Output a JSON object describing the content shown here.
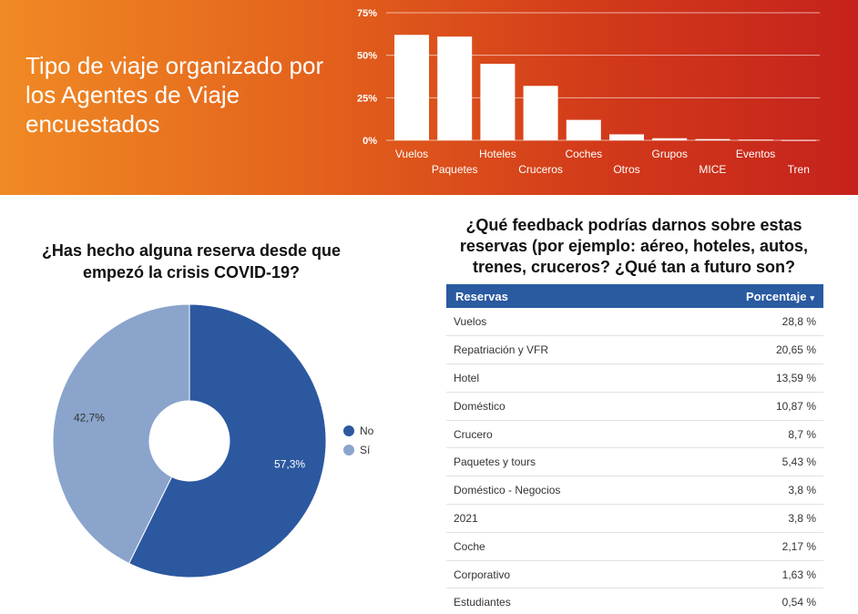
{
  "banner": {
    "title": "Tipo de viaje organizado por los Agentes de Viaje encuestados"
  },
  "pie": {
    "title": "¿Has hecho alguna reserva desde que empezó la crisis COVID-19?"
  },
  "table": {
    "title": "¿Qué feedback podrías darnos sobre estas reservas (por ejemplo: aéreo, hoteles, autos, trenes, cruceros? ¿Qué tan a futuro son?",
    "col_reservas": "Reservas",
    "col_porcentaje": "Porcentaje",
    "sort_icon": "▾"
  },
  "chart_data": [
    {
      "type": "bar",
      "categories": [
        "Vuelos",
        "Paquetes",
        "Hoteles",
        "Cruceros",
        "Coches",
        "Otros",
        "Grupos",
        "MICE",
        "Eventos",
        "Tren"
      ],
      "values": [
        62,
        61,
        45,
        32,
        12,
        3.5,
        1.2,
        0.7,
        0.4,
        0.2
      ],
      "yticks": [
        "0%",
        "25%",
        "50%",
        "75%"
      ],
      "ylim": [
        0,
        75
      ],
      "grid": true,
      "bar_color": "#ffffff"
    },
    {
      "type": "pie",
      "donut": true,
      "labels": [
        "No",
        "Sí"
      ],
      "values": [
        57.3,
        42.7
      ],
      "value_labels": [
        "57,3%",
        "42,7%"
      ],
      "colors": [
        "#2c58a0",
        "#8aa4cc"
      ],
      "legend": "right"
    },
    {
      "type": "table",
      "rows": [
        {
          "reserva": "Vuelos",
          "porcentaje": "28,8 %"
        },
        {
          "reserva": "Repatriación y VFR",
          "porcentaje": "20,65 %"
        },
        {
          "reserva": "Hotel",
          "porcentaje": "13,59 %"
        },
        {
          "reserva": "Doméstico",
          "porcentaje": "10,87 %"
        },
        {
          "reserva": "Crucero",
          "porcentaje": "8,7 %"
        },
        {
          "reserva": "Paquetes y tours",
          "porcentaje": "5,43 %"
        },
        {
          "reserva": "Doméstico - Negocios",
          "porcentaje": "3,8 %"
        },
        {
          "reserva": "2021",
          "porcentaje": "3,8 %"
        },
        {
          "reserva": "Coche",
          "porcentaje": "2,17 %"
        },
        {
          "reserva": "Corporativo",
          "porcentaje": "1,63 %"
        },
        {
          "reserva": "Estudiantes",
          "porcentaje": "0,54 %"
        }
      ]
    }
  ]
}
